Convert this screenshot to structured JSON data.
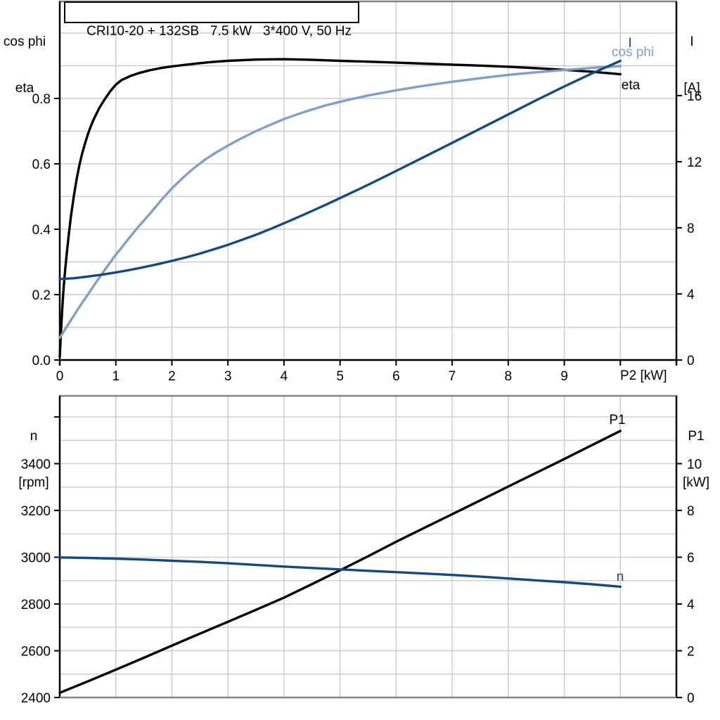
{
  "title_box": {
    "text": "CRI10-20 + 132SB   7.5 kW   3*400 V, 50 Hz"
  },
  "colors": {
    "black_curve": "#000000",
    "dark_blue": "#16497D",
    "light_blue": "#7FA0C4",
    "gridline": "#CBCBCB",
    "frame_gray": "#838383",
    "axis": "#000000"
  },
  "chart_data": [
    {
      "id": "motor-electrical-curves",
      "type": "line",
      "grid": true,
      "legend": "inline-curve-labels",
      "x_axis": {
        "label": "P2 [kW]",
        "range": [
          0,
          11
        ],
        "grid_step": 1,
        "tick_values": [
          0,
          1,
          2,
          3,
          4,
          5,
          6,
          7,
          8,
          9,
          10
        ],
        "tick_labels": [
          "0",
          "1",
          "2",
          "3",
          "4",
          "5",
          "6",
          "7",
          "8",
          "9",
          ""
        ]
      },
      "left_axis": {
        "label_lines": [
          "cos phi",
          "eta"
        ],
        "range": [
          0,
          1.0968
        ],
        "grid_step": 0.1,
        "tick_values": [
          0,
          0.2,
          0.4,
          0.6,
          0.8
        ],
        "tick_labels": [
          "0.0",
          "0.2",
          "0.4",
          "0.6",
          "0.8"
        ]
      },
      "right_axis": {
        "label_lines": [
          "I",
          "[A]"
        ],
        "range": [
          0,
          21.7
        ],
        "tick_values": [
          0,
          4,
          8,
          12,
          16
        ],
        "tick_labels": [
          "0",
          "4",
          "8",
          "12",
          "16"
        ]
      },
      "series": [
        {
          "name": "eta",
          "label": "eta",
          "axis": "left",
          "color_key": "black_curve",
          "points": [
            [
              0,
              0.01
            ],
            [
              0.02,
              0.08
            ],
            [
              0.04,
              0.145
            ],
            [
              0.06,
              0.2
            ],
            [
              0.08,
              0.245
            ],
            [
              0.1,
              0.283
            ],
            [
              0.13,
              0.335
            ],
            [
              0.16,
              0.383
            ],
            [
              0.2,
              0.44
            ],
            [
              0.25,
              0.5
            ],
            [
              0.3,
              0.552
            ],
            [
              0.35,
              0.596
            ],
            [
              0.4,
              0.632
            ],
            [
              0.45,
              0.662
            ],
            [
              0.5,
              0.69
            ],
            [
              0.55,
              0.713
            ],
            [
              0.6,
              0.734
            ],
            [
              0.7,
              0.769
            ],
            [
              0.8,
              0.797
            ],
            [
              0.9,
              0.822
            ],
            [
              1,
              0.842
            ],
            [
              1.1,
              0.856
            ],
            [
              1.25,
              0.868
            ],
            [
              1.4,
              0.877
            ],
            [
              1.6,
              0.886
            ],
            [
              1.8,
              0.893
            ],
            [
              2,
              0.898
            ],
            [
              2.25,
              0.903
            ],
            [
              2.5,
              0.908
            ],
            [
              2.75,
              0.912
            ],
            [
              3,
              0.915
            ],
            [
              3.5,
              0.919
            ],
            [
              4,
              0.92
            ],
            [
              4.5,
              0.918
            ],
            [
              5,
              0.915
            ],
            [
              5.5,
              0.9125
            ],
            [
              6,
              0.9095
            ],
            [
              6.5,
              0.9065
            ],
            [
              7,
              0.9035
            ],
            [
              7.5,
              0.9005
            ],
            [
              8,
              0.897
            ],
            [
              8.5,
              0.8925
            ],
            [
              9,
              0.8875
            ],
            [
              9.5,
              0.8815
            ],
            [
              10,
              0.874
            ]
          ]
        },
        {
          "name": "cos phi",
          "label": "cos phi",
          "axis": "left",
          "color_key": "light_blue",
          "points": [
            [
              0,
              0.068
            ],
            [
              0.1,
              0.095
            ],
            [
              0.2,
              0.122
            ],
            [
              0.3,
              0.149
            ],
            [
              0.4,
              0.175
            ],
            [
              0.5,
              0.2
            ],
            [
              0.65,
              0.238
            ],
            [
              0.8,
              0.275
            ],
            [
              1,
              0.322
            ],
            [
              1.2,
              0.365
            ],
            [
              1.4,
              0.407
            ],
            [
              1.6,
              0.446
            ],
            [
              1.8,
              0.487
            ],
            [
              2,
              0.525
            ],
            [
              2.2,
              0.558
            ],
            [
              2.4,
              0.588
            ],
            [
              2.6,
              0.614
            ],
            [
              2.8,
              0.636
            ],
            [
              3,
              0.656
            ],
            [
              3.25,
              0.679
            ],
            [
              3.5,
              0.7
            ],
            [
              3.75,
              0.719
            ],
            [
              4,
              0.737
            ],
            [
              4.25,
              0.752
            ],
            [
              4.5,
              0.766
            ],
            [
              4.75,
              0.779
            ],
            [
              5,
              0.79
            ],
            [
              5.5,
              0.809
            ],
            [
              6,
              0.825
            ],
            [
              6.5,
              0.839
            ],
            [
              7,
              0.851
            ],
            [
              7.5,
              0.862
            ],
            [
              8,
              0.872
            ],
            [
              8.5,
              0.88
            ],
            [
              9,
              0.887
            ],
            [
              9.5,
              0.8935
            ],
            [
              10,
              0.899
            ]
          ]
        },
        {
          "name": "I",
          "label": "I",
          "axis": "right",
          "color_key": "dark_blue",
          "points": [
            [
              0,
              4.9
            ],
            [
              0.25,
              4.95
            ],
            [
              0.5,
              5.05
            ],
            [
              0.75,
              5.16
            ],
            [
              1,
              5.3
            ],
            [
              1.25,
              5.45
            ],
            [
              1.5,
              5.62
            ],
            [
              1.75,
              5.8
            ],
            [
              2,
              6.0
            ],
            [
              2.25,
              6.21
            ],
            [
              2.5,
              6.44
            ],
            [
              2.75,
              6.7
            ],
            [
              3,
              6.97
            ],
            [
              3.25,
              7.27
            ],
            [
              3.5,
              7.58
            ],
            [
              3.75,
              7.92
            ],
            [
              4,
              8.27
            ],
            [
              4.25,
              8.64
            ],
            [
              4.5,
              9.02
            ],
            [
              4.75,
              9.4
            ],
            [
              5,
              9.8
            ],
            [
              5.25,
              10.2
            ],
            [
              5.5,
              10.6
            ],
            [
              6,
              11.44
            ],
            [
              6.5,
              12.29
            ],
            [
              7,
              13.14
            ],
            [
              7.5,
              14.0
            ],
            [
              8,
              14.86
            ],
            [
              8.5,
              15.72
            ],
            [
              9,
              16.55
            ],
            [
              9.5,
              17.35
            ],
            [
              10,
              18.1
            ]
          ]
        }
      ]
    },
    {
      "id": "speed-power-curves",
      "type": "line",
      "grid": true,
      "legend": "inline-curve-labels",
      "x_axis": {
        "label": "",
        "range": [
          0,
          11
        ],
        "grid_step": 1,
        "tick_values": [],
        "tick_labels": []
      },
      "left_axis": {
        "label_lines": [
          "n",
          "[rpm]"
        ],
        "range": [
          2400,
          3690
        ],
        "grid_step": 100,
        "tick_values": [
          2400,
          2600,
          2800,
          3000,
          3200,
          3400
        ],
        "tick_labels": [
          "2400",
          "2600",
          "2800",
          "3000",
          "3200",
          "3400"
        ],
        "extra_tick_values": [
          3600
        ]
      },
      "right_axis": {
        "label_lines": [
          "P1",
          "[kW]"
        ],
        "range": [
          0,
          12.9
        ],
        "tick_values": [
          0,
          2,
          4,
          6,
          8,
          10
        ],
        "tick_labels": [
          "0",
          "2",
          "4",
          "6",
          "8",
          "10"
        ]
      },
      "series": [
        {
          "name": "P1",
          "label": "P1",
          "axis": "right",
          "color_key": "black_curve",
          "points": [
            [
              0,
              0.2
            ],
            [
              0.5,
              0.69
            ],
            [
              1,
              1.19
            ],
            [
              1.5,
              1.7
            ],
            [
              2,
              2.22
            ],
            [
              2.5,
              2.73
            ],
            [
              3,
              3.24
            ],
            [
              3.5,
              3.75
            ],
            [
              4,
              4.27
            ],
            [
              4.5,
              4.85
            ],
            [
              5,
              5.44
            ],
            [
              5.5,
              6.04
            ],
            [
              6,
              6.66
            ],
            [
              6.5,
              7.25
            ],
            [
              7,
              7.84
            ],
            [
              7.5,
              8.43
            ],
            [
              8,
              9.02
            ],
            [
              8.5,
              9.61
            ],
            [
              9,
              10.2
            ],
            [
              9.5,
              10.8
            ],
            [
              10,
              11.4
            ]
          ]
        },
        {
          "name": "n",
          "label": "n",
          "axis": "left",
          "color_key": "dark_blue",
          "points": [
            [
              0,
              2999
            ],
            [
              0.5,
              2997
            ],
            [
              1,
              2994
            ],
            [
              1.5,
              2990
            ],
            [
              2,
              2985
            ],
            [
              2.5,
              2980
            ],
            [
              3,
              2974
            ],
            [
              3.5,
              2967
            ],
            [
              4,
              2960
            ],
            [
              4.5,
              2954
            ],
            [
              5,
              2948
            ],
            [
              5.5,
              2942
            ],
            [
              6,
              2936
            ],
            [
              6.5,
              2930
            ],
            [
              7,
              2924
            ],
            [
              7.5,
              2917
            ],
            [
              8,
              2909
            ],
            [
              8.5,
              2901
            ],
            [
              9,
              2893
            ],
            [
              9.5,
              2884
            ],
            [
              10,
              2874
            ]
          ]
        }
      ]
    }
  ]
}
